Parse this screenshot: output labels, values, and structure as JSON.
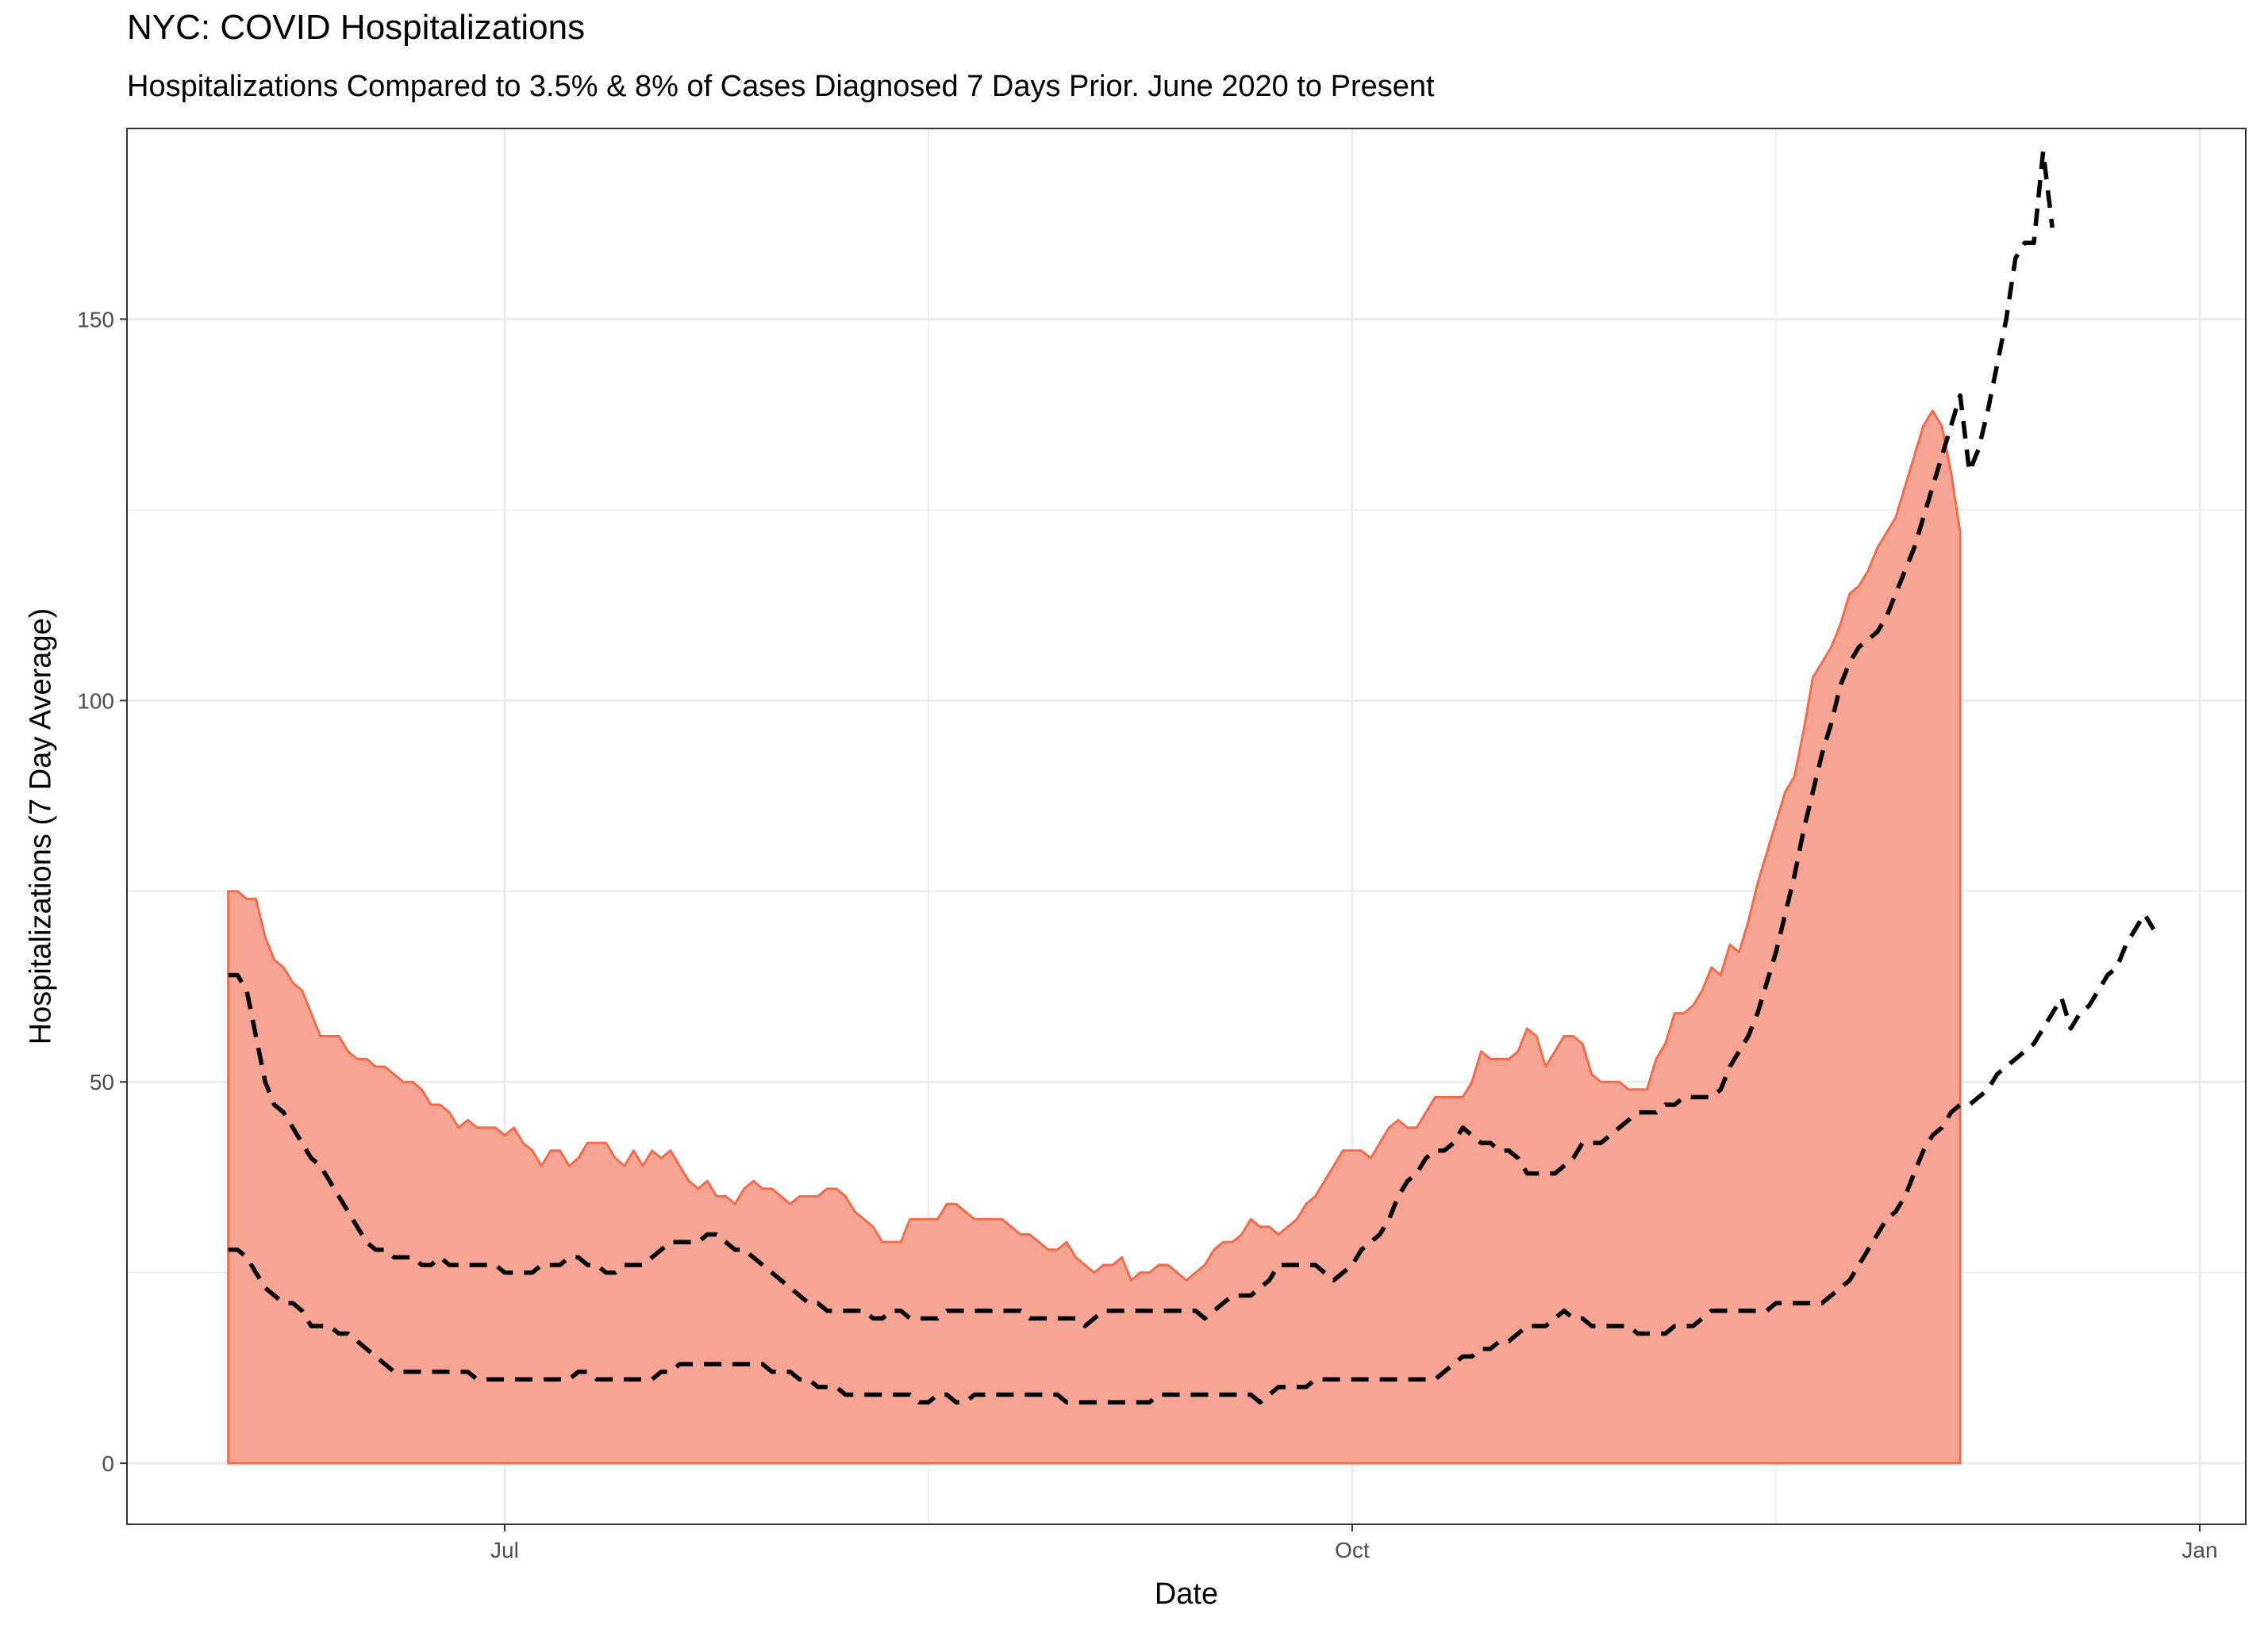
{
  "chart_data": {
    "type": "area",
    "title": "NYC: COVID Hospitalizations",
    "subtitle": "Hospitalizations Compared to 3.5% & 8% of Cases Diagnosed 7 Days Prior. June 2020 to Present",
    "xlabel": "Date",
    "ylabel": "Hospitalizations (7 Day Average)",
    "x_range": [
      "2020-05-21",
      "2021-01-06"
    ],
    "ylim": [
      -8,
      175
    ],
    "x_ticks": [
      {
        "date": "2020-07-01",
        "label": "Jul"
      },
      {
        "date": "2020-10-01",
        "label": "Oct"
      },
      {
        "date": "2021-01-01",
        "label": "Jan"
      }
    ],
    "y_ticks": [
      0,
      50,
      100,
      150
    ],
    "grid": true,
    "legend": "none",
    "colors": {
      "area_fill": "#f6a493",
      "area_line": "#f26b4a",
      "dashed_line": "#000000",
      "grid": "#ebebeb",
      "panel_border": "#333333"
    },
    "series": [
      {
        "style": "area",
        "start_date": "2020-06-01",
        "values": [
          75,
          75,
          74,
          74,
          69,
          66,
          65,
          63,
          62,
          59,
          56,
          56,
          56,
          54,
          53,
          53,
          52,
          52,
          51,
          50,
          50,
          49,
          47,
          47,
          46,
          44,
          45,
          44,
          44,
          44,
          43,
          44,
          42,
          41,
          39,
          41,
          41,
          39,
          40,
          42,
          42,
          42,
          40,
          39,
          41,
          39,
          41,
          40,
          41,
          39,
          37,
          36,
          37,
          35,
          35,
          34,
          36,
          37,
          36,
          36,
          35,
          34,
          35,
          35,
          35,
          36,
          36,
          35,
          33,
          32,
          31,
          29,
          29,
          29,
          32,
          32,
          32,
          32,
          34,
          34,
          33,
          32,
          32,
          32,
          32,
          31,
          30,
          30,
          29,
          28,
          28,
          29,
          27,
          26,
          25,
          26,
          26,
          27,
          24,
          25,
          25,
          26,
          26,
          25,
          24,
          25,
          26,
          28,
          29,
          29,
          30,
          32,
          31,
          31,
          30,
          31,
          32,
          34,
          35,
          37,
          39,
          41,
          41,
          41,
          40,
          42,
          44,
          45,
          44,
          44,
          46,
          48,
          48,
          48,
          48,
          50,
          54,
          53,
          53,
          53,
          54,
          57,
          56,
          52,
          54,
          56,
          56,
          55,
          51,
          50,
          50,
          50,
          49,
          49,
          49,
          53,
          55,
          59,
          59,
          60,
          62,
          65,
          64,
          68,
          67,
          71,
          76,
          80,
          84,
          88,
          90,
          96,
          103,
          105,
          107,
          110,
          114,
          115,
          117,
          120,
          122,
          124,
          128,
          132,
          136,
          138,
          136,
          130,
          122
        ]
      },
      {
        "style": "dashed",
        "start_date": "2020-06-01",
        "values": [
          64,
          64,
          62,
          56,
          50,
          47,
          46,
          44,
          42,
          40,
          39,
          37,
          35,
          33,
          31,
          29,
          28,
          28,
          27,
          27,
          27,
          26,
          26,
          27,
          26,
          26,
          26,
          26,
          26,
          26,
          25,
          25,
          25,
          25,
          26,
          26,
          26,
          27,
          27,
          26,
          26,
          25,
          25,
          26,
          26,
          26,
          27,
          28,
          29,
          29,
          29,
          29,
          30,
          30,
          29,
          28,
          28,
          27,
          26,
          25,
          24,
          23,
          22,
          21,
          21,
          20,
          20,
          20,
          20,
          20,
          19,
          19,
          20,
          20,
          19,
          19,
          19,
          19,
          20,
          20,
          20,
          20,
          20,
          20,
          20,
          20,
          20,
          19,
          19,
          19,
          19,
          19,
          19,
          18,
          19,
          20,
          20,
          20,
          20,
          20,
          20,
          20,
          20,
          20,
          20,
          20,
          19,
          20,
          21,
          22,
          22,
          22,
          23,
          24,
          26,
          26,
          26,
          26,
          26,
          25,
          24,
          25,
          26,
          28,
          29,
          30,
          32,
          35,
          37,
          38,
          40,
          41,
          41,
          42,
          44,
          43,
          42,
          42,
          41,
          41,
          40,
          38,
          38,
          38,
          38,
          39,
          40,
          42,
          42,
          42,
          43,
          44,
          45,
          46,
          46,
          46,
          47,
          47,
          48,
          48,
          48,
          48,
          49,
          52,
          54,
          56,
          59,
          63,
          67,
          72,
          77,
          83,
          88,
          93,
          97,
          102,
          105,
          107,
          108,
          109,
          111,
          114,
          117,
          120,
          124,
          128,
          132,
          136,
          140,
          130,
          133,
          138,
          144,
          150,
          158,
          160,
          160,
          172,
          162
        ]
      },
      {
        "style": "dashed",
        "start_date": "2020-06-01",
        "values": [
          28,
          28,
          27,
          25,
          23,
          22,
          21,
          21,
          20,
          18,
          18,
          18,
          17,
          17,
          16,
          15,
          14,
          13,
          12,
          12,
          12,
          12,
          12,
          12,
          12,
          12,
          12,
          11,
          11,
          11,
          11,
          11,
          11,
          11,
          11,
          11,
          11,
          11,
          12,
          12,
          11,
          11,
          11,
          11,
          11,
          11,
          11,
          12,
          12,
          13,
          13,
          13,
          13,
          13,
          13,
          13,
          13,
          13,
          13,
          12,
          12,
          12,
          11,
          11,
          10,
          10,
          10,
          9,
          9,
          9,
          9,
          9,
          9,
          9,
          9,
          8,
          8,
          9,
          9,
          8,
          8,
          9,
          9,
          9,
          9,
          9,
          9,
          9,
          9,
          9,
          9,
          8,
          8,
          8,
          8,
          8,
          8,
          8,
          8,
          8,
          8,
          9,
          9,
          9,
          9,
          9,
          9,
          9,
          9,
          9,
          9,
          9,
          8,
          9,
          10,
          10,
          10,
          10,
          11,
          11,
          11,
          11,
          11,
          11,
          11,
          11,
          11,
          11,
          11,
          11,
          11,
          11,
          12,
          13,
          14,
          14,
          15,
          15,
          16,
          16,
          17,
          18,
          18,
          18,
          19,
          20,
          19,
          19,
          18,
          18,
          18,
          18,
          18,
          17,
          17,
          17,
          17,
          18,
          18,
          18,
          19,
          20,
          20,
          20,
          20,
          20,
          20,
          20,
          21,
          21,
          21,
          21,
          21,
          21,
          22,
          23,
          24,
          26,
          28,
          30,
          32,
          33,
          35,
          38,
          41,
          43,
          44,
          46,
          47,
          47,
          48,
          49,
          51,
          52,
          53,
          54,
          55,
          57,
          59,
          61,
          57,
          59,
          60,
          62,
          64,
          65,
          68,
          70,
          72,
          70
        ]
      }
    ]
  }
}
